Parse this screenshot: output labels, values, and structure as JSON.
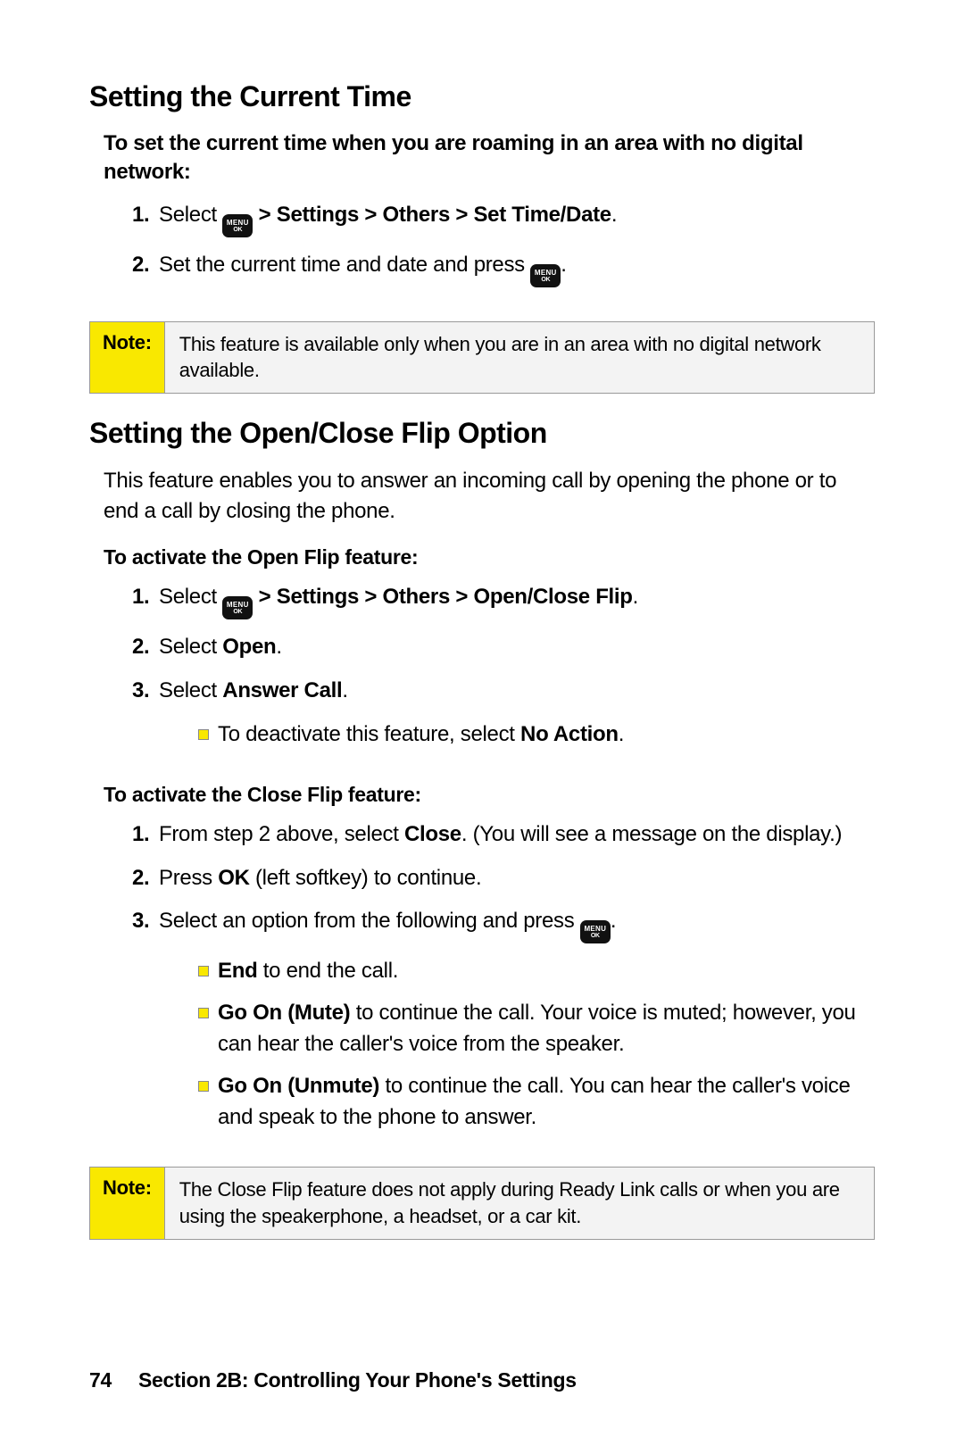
{
  "section1": {
    "heading": "Setting the Current Time",
    "intro": "To set the current time when you are roaming in an area with no digital network:",
    "steps": [
      {
        "pre": "Select ",
        "path": " > Settings > Others > Set Time/Date",
        "after": "."
      },
      {
        "pre": "Set the current time and date and press ",
        "path": "",
        "after": "."
      }
    ],
    "note": {
      "label": "Note:",
      "text": "This feature is available only when you are in an area with no digital network available."
    }
  },
  "section2": {
    "heading": "Setting the Open/Close Flip Option",
    "body": "This feature enables you to answer an incoming call by opening the phone or to end a call by closing the phone.",
    "openflip": {
      "intro": "To activate the Open Flip feature:",
      "step1_pre": "Select ",
      "step1_path": " > Settings > Others > Open/Close Flip",
      "step1_after": ".",
      "step2_pre": "Select ",
      "step2_bold": "Open",
      "step2_after": ".",
      "step3_pre": "Select ",
      "step3_bold": "Answer Call",
      "step3_after": ".",
      "sub1_pre": "To deactivate this feature, select ",
      "sub1_bold": "No Action",
      "sub1_after": "."
    },
    "closeflip": {
      "intro": "To activate the Close Flip feature:",
      "step1_pre": "From step 2 above, select ",
      "step1_bold": "Close",
      "step1_after": ". (You will see a message on the display.)",
      "step2_pre": "Press ",
      "step2_bold": "OK",
      "step2_after": " (left softkey) to continue.",
      "step3_pre": "Select an option from the following and press ",
      "step3_after": ".",
      "sub1_bold": "End",
      "sub1_after": " to end the call.",
      "sub2_bold": "Go On (Mute)",
      "sub2_after": " to continue the call. Your voice is muted; however, you can hear the caller's voice from the speaker.",
      "sub3_bold": "Go On (Unmute)",
      "sub3_after": " to continue the call. You can hear the caller's voice and speak to the phone to answer."
    },
    "note": {
      "label": "Note:",
      "text": "The Close Flip feature does not apply during Ready Link calls or when you are using the speakerphone, a headset, or a car kit."
    }
  },
  "footer": {
    "page": "74",
    "section": "Section 2B: Controlling Your Phone's Settings"
  },
  "menukey": {
    "top": "MENU",
    "bot": "OK"
  }
}
